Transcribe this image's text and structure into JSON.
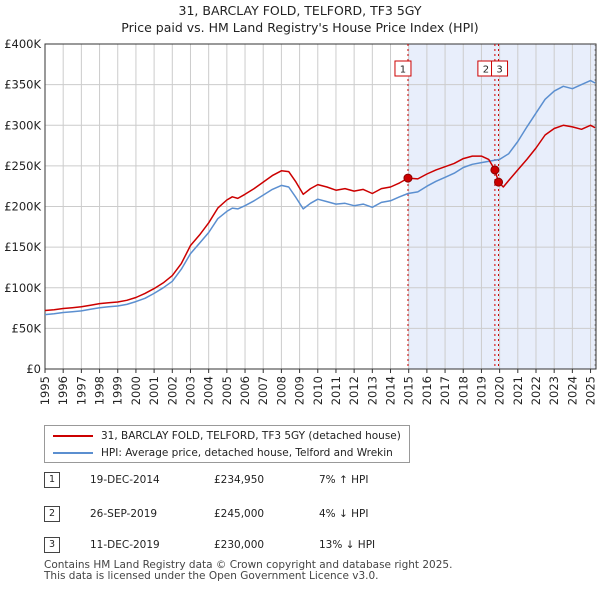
{
  "chart_data": {
    "type": "line",
    "title": "31, BARCLAY FOLD, TELFORD, TF3 5GY",
    "subtitle": "Price paid vs. HM Land Registry's House Price Index (HPI)",
    "xlim": [
      1995,
      2025.3
    ],
    "ylim": [
      0,
      400000
    ],
    "y_ticks": [
      0,
      50000,
      100000,
      150000,
      200000,
      250000,
      300000,
      350000,
      400000
    ],
    "y_tick_labels": [
      "£0",
      "£50K",
      "£100K",
      "£150K",
      "£200K",
      "£250K",
      "£300K",
      "£350K",
      "£400K"
    ],
    "x_ticks": [
      1995,
      1996,
      1997,
      1998,
      1999,
      2000,
      2001,
      2002,
      2003,
      2004,
      2005,
      2006,
      2007,
      2008,
      2009,
      2010,
      2011,
      2012,
      2013,
      2014,
      2015,
      2016,
      2017,
      2018,
      2019,
      2020,
      2021,
      2022,
      2023,
      2024,
      2025
    ],
    "x_tick_labels": [
      "1995",
      "1996",
      "1997",
      "1998",
      "1999",
      "2000",
      "2001",
      "2002",
      "2003",
      "2004",
      "2005",
      "2006",
      "2007",
      "2008",
      "2009",
      "2010",
      "2011",
      "2012",
      "2013",
      "2014",
      "2015",
      "2016",
      "2017",
      "2018",
      "2019",
      "2020",
      "2021",
      "2022",
      "2023",
      "2024",
      "2025"
    ],
    "grid": true,
    "shaded_span": [
      2014.96,
      2025.3
    ],
    "series": [
      {
        "name": "31, BARCLAY FOLD, TELFORD, TF3 5GY (detached house)",
        "color": "#cc0000",
        "points": [
          [
            1995,
            72000
          ],
          [
            1995.5,
            73000
          ],
          [
            1996,
            74500
          ],
          [
            1996.5,
            75500
          ],
          [
            1997,
            76500
          ],
          [
            1997.5,
            78500
          ],
          [
            1998,
            80500
          ],
          [
            1998.5,
            81500
          ],
          [
            1999,
            82500
          ],
          [
            1999.5,
            84500
          ],
          [
            2000,
            88000
          ],
          [
            2000.5,
            93000
          ],
          [
            2001,
            99000
          ],
          [
            2001.5,
            106000
          ],
          [
            2002,
            115000
          ],
          [
            2002.5,
            130000
          ],
          [
            2003,
            152000
          ],
          [
            2003.5,
            165000
          ],
          [
            2004,
            180000
          ],
          [
            2004.5,
            198000
          ],
          [
            2005,
            208000
          ],
          [
            2005.3,
            212000
          ],
          [
            2005.6,
            210000
          ],
          [
            2006,
            215000
          ],
          [
            2006.5,
            222000
          ],
          [
            2007,
            230000
          ],
          [
            2007.5,
            238000
          ],
          [
            2008,
            244000
          ],
          [
            2008.4,
            243000
          ],
          [
            2008.8,
            230000
          ],
          [
            2009.2,
            215000
          ],
          [
            2009.6,
            222000
          ],
          [
            2010,
            227000
          ],
          [
            2010.5,
            224000
          ],
          [
            2011,
            220000
          ],
          [
            2011.5,
            222000
          ],
          [
            2012,
            219000
          ],
          [
            2012.5,
            221000
          ],
          [
            2013,
            216000
          ],
          [
            2013.5,
            222000
          ],
          [
            2014,
            224000
          ],
          [
            2014.5,
            229000
          ],
          [
            2014.96,
            234950
          ],
          [
            2015.5,
            234000
          ],
          [
            2016,
            240000
          ],
          [
            2016.5,
            245000
          ],
          [
            2017,
            249000
          ],
          [
            2017.5,
            253000
          ],
          [
            2018,
            259000
          ],
          [
            2018.5,
            262000
          ],
          [
            2019,
            262000
          ],
          [
            2019.4,
            258000
          ],
          [
            2019.74,
            245000
          ],
          [
            2019.94,
            230000
          ],
          [
            2020.2,
            224000
          ],
          [
            2020.5,
            232000
          ],
          [
            2021,
            245000
          ],
          [
            2021.5,
            258000
          ],
          [
            2022,
            272000
          ],
          [
            2022.5,
            288000
          ],
          [
            2023,
            296000
          ],
          [
            2023.5,
            300000
          ],
          [
            2024,
            298000
          ],
          [
            2024.5,
            295000
          ],
          [
            2025,
            300000
          ],
          [
            2025.25,
            297000
          ]
        ]
      },
      {
        "name": "HPI: Average price, detached house, Telford and Wrekin",
        "color": "#5b8fd0",
        "points": [
          [
            1995,
            67000
          ],
          [
            1995.5,
            68000
          ],
          [
            1996,
            69500
          ],
          [
            1996.5,
            70500
          ],
          [
            1997,
            71500
          ],
          [
            1997.5,
            73500
          ],
          [
            1998,
            75500
          ],
          [
            1998.5,
            76500
          ],
          [
            1999,
            77500
          ],
          [
            1999.5,
            79500
          ],
          [
            2000,
            83000
          ],
          [
            2000.5,
            87000
          ],
          [
            2001,
            93000
          ],
          [
            2001.5,
            100000
          ],
          [
            2002,
            108000
          ],
          [
            2002.5,
            123000
          ],
          [
            2003,
            142000
          ],
          [
            2003.5,
            155000
          ],
          [
            2004,
            168000
          ],
          [
            2004.5,
            185000
          ],
          [
            2005,
            194000
          ],
          [
            2005.3,
            198000
          ],
          [
            2005.6,
            197000
          ],
          [
            2006,
            201000
          ],
          [
            2006.5,
            207000
          ],
          [
            2007,
            214000
          ],
          [
            2007.5,
            221000
          ],
          [
            2008,
            226000
          ],
          [
            2008.4,
            224000
          ],
          [
            2008.8,
            211000
          ],
          [
            2009.2,
            197000
          ],
          [
            2009.6,
            204000
          ],
          [
            2010,
            209000
          ],
          [
            2010.5,
            206000
          ],
          [
            2011,
            203000
          ],
          [
            2011.5,
            204000
          ],
          [
            2012,
            201000
          ],
          [
            2012.5,
            203000
          ],
          [
            2013,
            199000
          ],
          [
            2013.5,
            205000
          ],
          [
            2014,
            207000
          ],
          [
            2014.5,
            212000
          ],
          [
            2014.96,
            216000
          ],
          [
            2015.5,
            218000
          ],
          [
            2016,
            225000
          ],
          [
            2016.5,
            231000
          ],
          [
            2017,
            236000
          ],
          [
            2017.5,
            241000
          ],
          [
            2018,
            248000
          ],
          [
            2018.5,
            252000
          ],
          [
            2019,
            254000
          ],
          [
            2019.5,
            256000
          ],
          [
            2020,
            258000
          ],
          [
            2020.5,
            265000
          ],
          [
            2021,
            280000
          ],
          [
            2021.5,
            298000
          ],
          [
            2022,
            315000
          ],
          [
            2022.5,
            332000
          ],
          [
            2023,
            342000
          ],
          [
            2023.5,
            348000
          ],
          [
            2024,
            345000
          ],
          [
            2024.5,
            350000
          ],
          [
            2025,
            355000
          ],
          [
            2025.25,
            352000
          ]
        ]
      }
    ],
    "sales": [
      {
        "id": "1",
        "x": 2014.96,
        "price": 234950,
        "date": "19-DEC-2014",
        "price_label": "£234,950",
        "hpi": "7% ↑ HPI"
      },
      {
        "id": "2",
        "x": 2019.74,
        "price": 245000,
        "date": "26-SEP-2019",
        "price_label": "£245,000",
        "hpi": "4% ↓ HPI"
      },
      {
        "id": "3",
        "x": 2019.94,
        "price": 230000,
        "date": "11-DEC-2019",
        "price_label": "£230,000",
        "hpi": "13% ↓ HPI"
      }
    ],
    "marker_labels": [
      "1",
      "2",
      "3"
    ]
  },
  "legend": {
    "property": "31, BARCLAY FOLD, TELFORD, TF3 5GY (detached house)",
    "hpi": "HPI: Average price, detached house, Telford and Wrekin"
  },
  "footer": {
    "line1": "Contains HM Land Registry data © Crown copyright and database right 2025.",
    "line2": "This data is licensed under the Open Government Licence v3.0."
  },
  "colors": {
    "property": "#cc0000",
    "hpi": "#5b8fd0",
    "shade": "#e8eefb",
    "grid": "#cccccc"
  }
}
